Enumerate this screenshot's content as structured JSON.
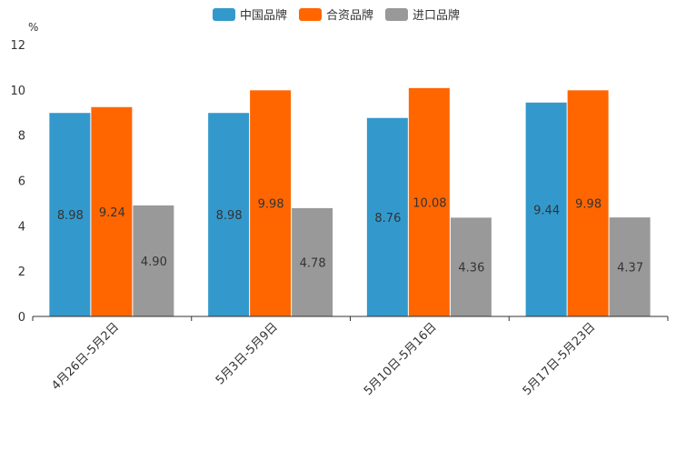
{
  "chart_data": {
    "type": "bar",
    "title": "",
    "xlabel": "",
    "ylabel": "%",
    "ylim": [
      0,
      12
    ],
    "yticks": [
      0,
      2,
      4,
      6,
      8,
      10,
      12
    ],
    "legend_position": "top-center",
    "grid": false,
    "categories": [
      "4月26日-5月2日",
      "5月3日-5月9日",
      "5月10日-5月16日",
      "5月17日-5月23日"
    ],
    "series": [
      {
        "name": "中国品牌",
        "color": "#3399cc",
        "values": [
          8.98,
          8.98,
          8.76,
          9.44
        ],
        "labels": [
          "8.98",
          "8.98",
          "8.76",
          "9.44"
        ]
      },
      {
        "name": "合资品牌",
        "color": "#ff6600",
        "values": [
          9.24,
          9.98,
          10.08,
          9.98
        ],
        "labels": [
          "9.24",
          "9.98",
          "10.08",
          "9.98"
        ]
      },
      {
        "name": "进口品牌",
        "color": "#999999",
        "values": [
          4.9,
          4.78,
          4.36,
          4.37
        ],
        "labels": [
          "4.90",
          "4.78",
          "4.36",
          "4.37"
        ]
      }
    ]
  }
}
